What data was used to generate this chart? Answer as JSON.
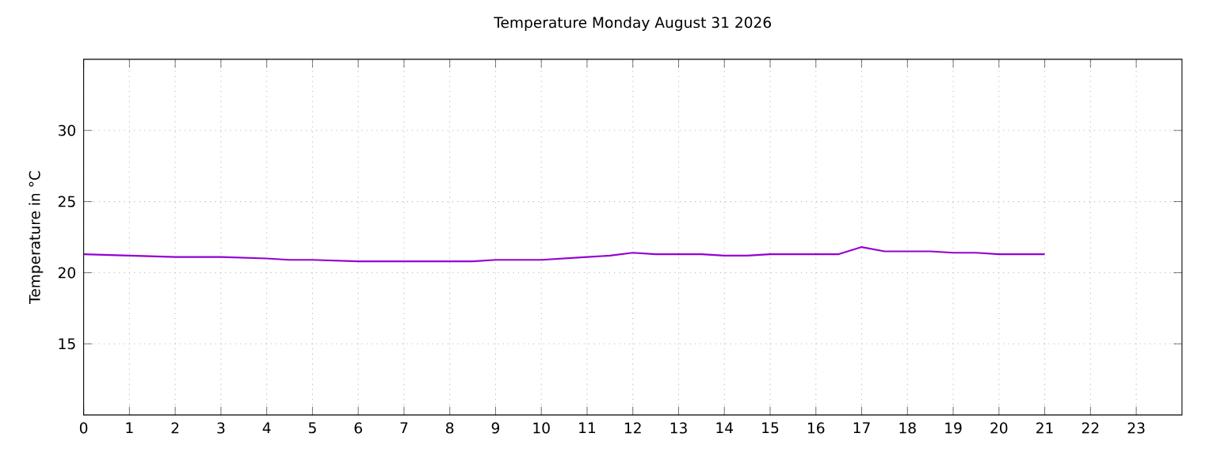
{
  "chart_data": {
    "type": "line",
    "title": "Temperature Monday August 31 2026",
    "ylabel": "Temperature in °C",
    "x": [
      0,
      1,
      2,
      3,
      4,
      4.5,
      5,
      6,
      7,
      8,
      8.5,
      9,
      10,
      11,
      11.5,
      12,
      12.5,
      13,
      13.5,
      14,
      14.5,
      15,
      16,
      16.5,
      17,
      17.5,
      18,
      18.5,
      19,
      19.5,
      20,
      21
    ],
    "series": [
      {
        "color": "#9400d3",
        "values": [
          21.3,
          21.2,
          21.1,
          21.1,
          21.0,
          20.9,
          20.9,
          20.8,
          20.8,
          20.8,
          20.8,
          20.9,
          20.9,
          21.1,
          21.2,
          21.4,
          21.3,
          21.3,
          21.3,
          21.2,
          21.2,
          21.3,
          21.3,
          21.3,
          21.8,
          21.5,
          21.5,
          21.5,
          21.4,
          21.4,
          21.3,
          21.3
        ]
      }
    ],
    "xlim": [
      0,
      24
    ],
    "ylim": [
      10,
      35
    ],
    "xticks": [
      0,
      1,
      2,
      3,
      4,
      5,
      6,
      7,
      8,
      9,
      10,
      11,
      12,
      13,
      14,
      15,
      16,
      17,
      18,
      19,
      20,
      21,
      22,
      23
    ],
    "yticks": [
      15,
      20,
      25,
      30
    ],
    "grid": true
  }
}
